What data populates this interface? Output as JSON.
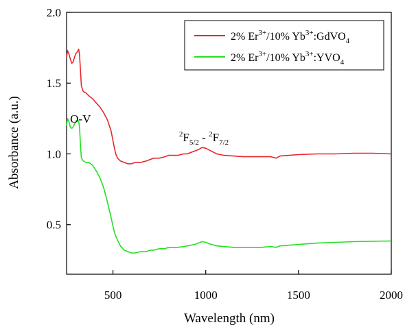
{
  "chart_data": {
    "type": "line",
    "xlabel": "Wavelength (nm)",
    "ylabel": "Absorbance (a.u.)",
    "xlim": [
      250,
      2000
    ],
    "ylim": [
      0.15,
      2.0
    ],
    "xticks": [
      500,
      1000,
      1500,
      2000
    ],
    "yticks": [
      0.5,
      1.0,
      1.5,
      2.0
    ],
    "xtick_labels": [
      "500",
      "1000",
      "1500",
      "2000"
    ],
    "ytick_labels": [
      "0.5",
      "1.0",
      "1.5",
      "2.0"
    ],
    "grid": false,
    "legend_position": "top-right",
    "series": [
      {
        "name": "2% Er3+/10% Yb3+:GdVO4",
        "legend_parts": {
          "a": "2% Er",
          "a_sup": "3+",
          "b": "/10% Yb",
          "b_sup": "3+",
          "c": ":GdVO",
          "c_sub": "4"
        },
        "color": "#e8262a",
        "x": [
          250,
          255,
          262,
          270,
          278,
          285,
          292,
          300,
          308,
          315,
          320,
          325,
          330,
          340,
          355,
          370,
          390,
          410,
          430,
          450,
          470,
          490,
          505,
          515,
          525,
          540,
          560,
          580,
          600,
          620,
          650,
          680,
          700,
          720,
          750,
          780,
          800,
          820,
          850,
          880,
          900,
          920,
          940,
          960,
          980,
          1000,
          1030,
          1060,
          1100,
          1150,
          1200,
          1250,
          1300,
          1350,
          1380,
          1400,
          1450,
          1500,
          1600,
          1700,
          1800,
          1900,
          2000
        ],
        "y": [
          1.68,
          1.73,
          1.71,
          1.67,
          1.64,
          1.65,
          1.68,
          1.71,
          1.72,
          1.74,
          1.7,
          1.58,
          1.48,
          1.44,
          1.43,
          1.41,
          1.39,
          1.36,
          1.33,
          1.29,
          1.24,
          1.16,
          1.06,
          1.0,
          0.97,
          0.95,
          0.94,
          0.93,
          0.93,
          0.94,
          0.94,
          0.95,
          0.96,
          0.97,
          0.97,
          0.98,
          0.99,
          0.99,
          0.99,
          1.0,
          1.0,
          1.01,
          1.02,
          1.03,
          1.045,
          1.04,
          1.02,
          1.0,
          0.99,
          0.985,
          0.98,
          0.98,
          0.98,
          0.98,
          0.97,
          0.985,
          0.99,
          0.995,
          1.0,
          1.0,
          1.005,
          1.005,
          1.0
        ]
      },
      {
        "name": "2% Er3+/10% Yb3+:YVO4",
        "legend_parts": {
          "a": "2% Er",
          "a_sup": "3+",
          "b": "/10% Yb",
          "b_sup": "3+",
          "c": ":YVO",
          "c_sub": "4"
        },
        "color": "#22e022",
        "x": [
          250,
          255,
          262,
          270,
          278,
          285,
          292,
          300,
          308,
          315,
          320,
          325,
          330,
          340,
          355,
          370,
          390,
          410,
          430,
          450,
          470,
          490,
          505,
          515,
          525,
          540,
          560,
          580,
          600,
          620,
          650,
          680,
          700,
          720,
          750,
          780,
          800,
          820,
          850,
          880,
          900,
          920,
          940,
          960,
          980,
          1000,
          1030,
          1060,
          1100,
          1150,
          1200,
          1250,
          1300,
          1350,
          1380,
          1400,
          1450,
          1500,
          1600,
          1700,
          1800,
          1900,
          2000
        ],
        "y": [
          1.2,
          1.25,
          1.23,
          1.19,
          1.18,
          1.19,
          1.21,
          1.23,
          1.24,
          1.23,
          1.19,
          1.05,
          0.97,
          0.95,
          0.94,
          0.94,
          0.92,
          0.88,
          0.83,
          0.76,
          0.66,
          0.55,
          0.46,
          0.42,
          0.39,
          0.35,
          0.32,
          0.31,
          0.3,
          0.3,
          0.31,
          0.31,
          0.32,
          0.32,
          0.33,
          0.33,
          0.34,
          0.34,
          0.34,
          0.345,
          0.35,
          0.355,
          0.36,
          0.37,
          0.38,
          0.375,
          0.36,
          0.35,
          0.345,
          0.34,
          0.34,
          0.34,
          0.34,
          0.345,
          0.34,
          0.35,
          0.355,
          0.36,
          0.37,
          0.375,
          0.38,
          0.383,
          0.385
        ]
      }
    ],
    "annotations": [
      {
        "id": "ov",
        "text": "O-V",
        "x": 325,
        "y": 1.22
      },
      {
        "id": "transition",
        "x": 990,
        "y": 1.09,
        "parts": {
          "p1": "2",
          "p2": "F",
          "p3": "5/2",
          "p4": " - ",
          "p5": "2",
          "p6": "F",
          "p7": "7/2"
        }
      }
    ]
  }
}
